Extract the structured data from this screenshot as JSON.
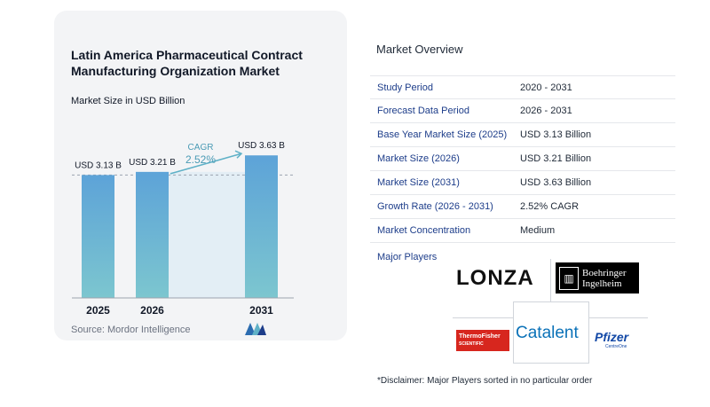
{
  "chart_data": {
    "type": "bar",
    "title": "Latin America Pharmaceutical Contract Manufacturing Organization Market",
    "subtitle": "Market Size in USD Billion",
    "categories": [
      "2025",
      "2026",
      "2031"
    ],
    "values": [
      3.13,
      3.21,
      3.63
    ],
    "value_labels": [
      "USD 3.13 B",
      "USD 3.21 B",
      "USD 3.63 B"
    ],
    "unit": "USD Billion",
    "ylim": [
      0,
      4.2
    ],
    "cagr_label": "CAGR",
    "cagr_value": "2.52%",
    "grid": false,
    "legend": "none"
  },
  "source": "Source:  Mordor Intelligence",
  "colors": {
    "bar_top": "#5da3d8",
    "bar_bottom": "#7cc6cf",
    "cagr_arrow": "#5fb1c7",
    "label_blue": "#1d3d8a"
  },
  "overview": {
    "title": "Market Overview",
    "rows": [
      {
        "label": "Study Period",
        "value": "2020 - 2031"
      },
      {
        "label": "Forecast Data Period",
        "value": "2026 - 2031"
      },
      {
        "label": "Base Year Market Size (2025)",
        "value": "USD 3.13 Billion"
      },
      {
        "label": "Market Size (2026)",
        "value": "USD 3.21 Billion"
      },
      {
        "label": "Market Size (2031)",
        "value": "USD 3.63 Billion"
      },
      {
        "label": "Growth Rate (2026 - 2031)",
        "value": "2.52% CAGR"
      },
      {
        "label": "Market Concentration",
        "value": "Medium"
      }
    ],
    "major_players_label": "Major Players",
    "disclaimer": "*Disclaimer: Major Players sorted in no particular order"
  },
  "players": {
    "lonza": "LONZA",
    "boehringer_line1": "Boehringer",
    "boehringer_line2": "Ingelheim",
    "thermo_line1": "ThermoFisher",
    "thermo_line2": "SCIENTIFIC",
    "catalent": "Catalent",
    "pfizer": "Pfizer",
    "pfizer_sub": "CentreOne"
  }
}
